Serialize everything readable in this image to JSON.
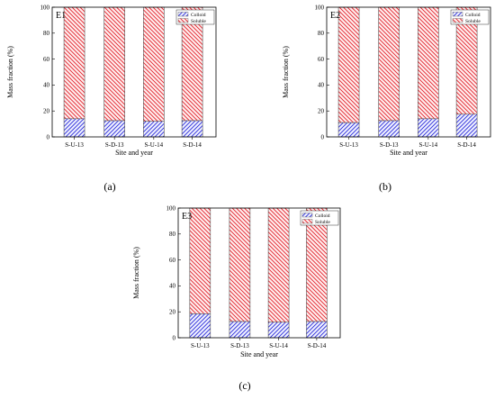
{
  "colors": {
    "colloid_stroke": "#2b2bd9",
    "soluble_stroke": "#e0202a",
    "colloid_bg": "#eef0ff",
    "soluble_bg": "#ffeded"
  },
  "chart_data": [
    {
      "type": "bar",
      "stacked": true,
      "panel": "E1",
      "caption": "(a)",
      "xlabel": "Site and year",
      "ylabel": "Mass fraction (%)",
      "ylim": [
        0,
        100
      ],
      "yticks": [
        "0",
        "20",
        "40",
        "60",
        "80",
        "100"
      ],
      "categories": [
        "S-U-13",
        "S-D-13",
        "S-U-14",
        "S-D-14"
      ],
      "legend_position": "top-right",
      "series": [
        {
          "name": "Colloid",
          "values": [
            14,
            12.5,
            12,
            12.5
          ]
        },
        {
          "name": "Soluble",
          "values": [
            86,
            87.5,
            88,
            87.5
          ]
        }
      ]
    },
    {
      "type": "bar",
      "stacked": true,
      "panel": "E2",
      "caption": "(b)",
      "xlabel": "Site and year",
      "ylabel": "Mass fraction (%)",
      "ylim": [
        0,
        100
      ],
      "yticks": [
        "0",
        "20",
        "40",
        "60",
        "80",
        "100"
      ],
      "categories": [
        "S-U-13",
        "S-D-13",
        "S-U-14",
        "S-D-14"
      ],
      "legend_position": "top-right",
      "series": [
        {
          "name": "Colloid",
          "values": [
            11,
            12.5,
            14,
            17.5
          ]
        },
        {
          "name": "Soluble",
          "values": [
            89,
            87.5,
            86,
            82.5
          ]
        }
      ]
    },
    {
      "type": "bar",
      "stacked": true,
      "panel": "E3",
      "caption": "(c)",
      "xlabel": "Site and year",
      "ylabel": "Mass fraction (%)",
      "ylim": [
        0,
        100
      ],
      "yticks": [
        "0",
        "20",
        "40",
        "60",
        "80",
        "100"
      ],
      "categories": [
        "S-U-13",
        "S-D-13",
        "S-U-14",
        "S-D-14"
      ],
      "legend_position": "top-right",
      "series": [
        {
          "name": "Colloid",
          "values": [
            18.5,
            12.5,
            12,
            12.5
          ]
        },
        {
          "name": "Soluble",
          "values": [
            81.5,
            87.5,
            88,
            87.5
          ]
        }
      ]
    }
  ]
}
